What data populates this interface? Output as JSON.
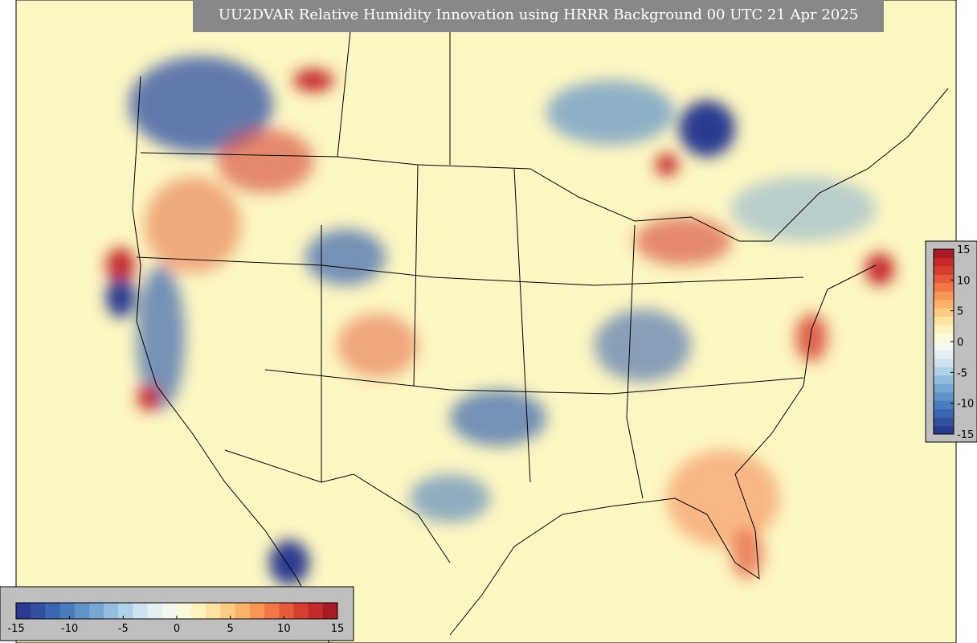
{
  "title": "UU2DVAR Relative Humidity Innovation using HRRR Background 00 UTC 21 Apr 2025",
  "colorbar": {
    "range": [
      -15,
      15
    ],
    "ticks": [
      -15,
      -10,
      -5,
      0,
      5,
      10,
      15
    ],
    "colors": [
      "#2b3a8f",
      "#3050a0",
      "#3b66b0",
      "#4a7dbd",
      "#5f93c8",
      "#77a8d3",
      "#93bedf",
      "#b0d2e8",
      "#cde3ef",
      "#e4eff2",
      "#f3f7f0",
      "#fbfbdc",
      "#fdf3bf",
      "#fee3a0",
      "#fdcb82",
      "#fcb168",
      "#f99555",
      "#f37746",
      "#e65a3a",
      "#d63f30",
      "#c42a2a",
      "#a81a24"
    ]
  }
}
